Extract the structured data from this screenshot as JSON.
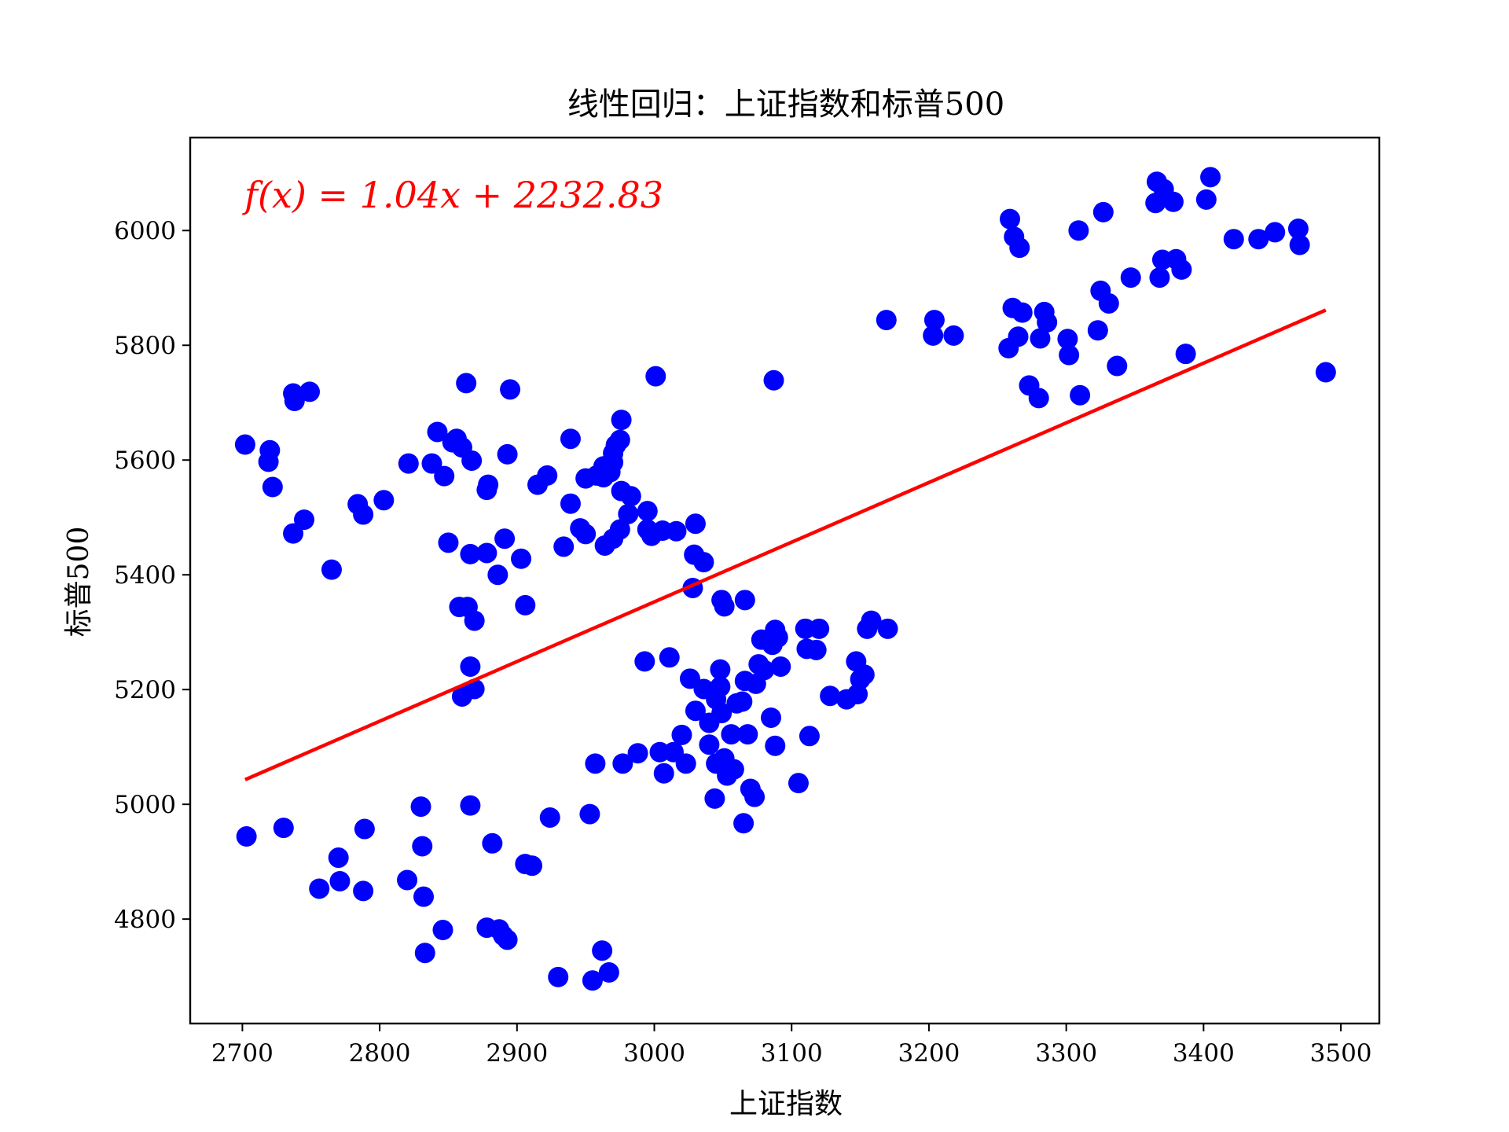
{
  "chart_data": {
    "type": "scatter",
    "title": "线性回归：上证指数和标普500",
    "xlabel": "上证指数",
    "ylabel": "标普500",
    "xlim": [
      2662,
      3528
    ],
    "ylim": [
      4618,
      6162
    ],
    "x_ticks": [
      2700,
      2800,
      2900,
      3000,
      3100,
      3200,
      3300,
      3400,
      3500
    ],
    "y_ticks": [
      4800,
      5000,
      5200,
      5400,
      5600,
      5800,
      6000
    ],
    "x_tick_labels": [
      "2700",
      "2800",
      "2900",
      "3000",
      "3100",
      "3200",
      "3300",
      "3400",
      "3500"
    ],
    "y_tick_labels": [
      "4800",
      "5000",
      "5200",
      "5400",
      "5600",
      "5800",
      "6000"
    ],
    "grid": false,
    "point_color": "#0000ff",
    "line_color": "#ff0000",
    "fit_label": "f(x) = 1.04x + 2232.83",
    "fit": {
      "slope": 1.04,
      "intercept": 2232.83,
      "x_range": [
        2702,
        3489
      ]
    },
    "points": [
      [
        2702,
        5627
      ],
      [
        2720,
        5617
      ],
      [
        2719,
        5597
      ],
      [
        2722,
        5553
      ],
      [
        2737,
        5716
      ],
      [
        2738,
        5703
      ],
      [
        2749,
        5719
      ],
      [
        2737,
        5472
      ],
      [
        2745,
        5496
      ],
      [
        2765,
        5409
      ],
      [
        2784,
        5523
      ],
      [
        2788,
        5505
      ],
      [
        2803,
        5530
      ],
      [
        2821,
        5594
      ],
      [
        2838,
        5594
      ],
      [
        2842,
        5649
      ],
      [
        2847,
        5572
      ],
      [
        2853,
        5631
      ],
      [
        2856,
        5637
      ],
      [
        2860,
        5622
      ],
      [
        2867,
        5599
      ],
      [
        2863,
        5734
      ],
      [
        2878,
        5548
      ],
      [
        2879,
        5557
      ],
      [
        2893,
        5610
      ],
      [
        2895,
        5723
      ],
      [
        2850,
        5456
      ],
      [
        2866,
        5436
      ],
      [
        2878,
        5438
      ],
      [
        2886,
        5400
      ],
      [
        2891,
        5463
      ],
      [
        2903,
        5428
      ],
      [
        2858,
        5344
      ],
      [
        2864,
        5344
      ],
      [
        2869,
        5320
      ],
      [
        2906,
        5347
      ],
      [
        2915,
        5557
      ],
      [
        2922,
        5573
      ],
      [
        2939,
        5637
      ],
      [
        2934,
        5449
      ],
      [
        2939,
        5524
      ],
      [
        2946,
        5481
      ],
      [
        2950,
        5471
      ],
      [
        2950,
        5568
      ],
      [
        2958,
        5573
      ],
      [
        2963,
        5589
      ],
      [
        2963,
        5570
      ],
      [
        2968,
        5579
      ],
      [
        2970,
        5596
      ],
      [
        2970,
        5612
      ],
      [
        2972,
        5626
      ],
      [
        2975,
        5635
      ],
      [
        2976,
        5670
      ],
      [
        2976,
        5546
      ],
      [
        2983,
        5537
      ],
      [
        2981,
        5506
      ],
      [
        2995,
        5511
      ],
      [
        2995,
        5479
      ],
      [
        2998,
        5468
      ],
      [
        3006,
        5477
      ],
      [
        3016,
        5476
      ],
      [
        3030,
        5489
      ],
      [
        2964,
        5451
      ],
      [
        2970,
        5463
      ],
      [
        2975,
        5479
      ],
      [
        3001,
        5746
      ],
      [
        3029,
        5435
      ],
      [
        3036,
        5422
      ],
      [
        3028,
        5377
      ],
      [
        3049,
        5356
      ],
      [
        3051,
        5345
      ],
      [
        3066,
        5356
      ],
      [
        3087,
        5739
      ],
      [
        2866,
        5240
      ],
      [
        2869,
        5201
      ],
      [
        2860,
        5188
      ],
      [
        2993,
        5249
      ],
      [
        3011,
        5256
      ],
      [
        2957,
        5071
      ],
      [
        2977,
        5071
      ],
      [
        2988,
        5089
      ],
      [
        3004,
        5091
      ],
      [
        3007,
        5054
      ],
      [
        3014,
        5091
      ],
      [
        3020,
        5121
      ],
      [
        3023,
        5071
      ],
      [
        3026,
        5219
      ],
      [
        3030,
        5163
      ],
      [
        3036,
        5201
      ],
      [
        3040,
        5142
      ],
      [
        3040,
        5104
      ],
      [
        3045,
        5183
      ],
      [
        3045,
        5071
      ],
      [
        3048,
        5235
      ],
      [
        3048,
        5205
      ],
      [
        3049,
        5159
      ],
      [
        3051,
        5080
      ],
      [
        3053,
        5050
      ],
      [
        3056,
        5122
      ],
      [
        3058,
        5061
      ],
      [
        3060,
        5176
      ],
      [
        3064,
        5179
      ],
      [
        3066,
        5215
      ],
      [
        3068,
        5122
      ],
      [
        3070,
        5027
      ],
      [
        3073,
        5013
      ],
      [
        3074,
        5210
      ],
      [
        3076,
        5244
      ],
      [
        3078,
        5287
      ],
      [
        3080,
        5234
      ],
      [
        3085,
        5151
      ],
      [
        3086,
        5278
      ],
      [
        3088,
        5304
      ],
      [
        3088,
        5102
      ],
      [
        3090,
        5291
      ],
      [
        3092,
        5240
      ],
      [
        3044,
        5010
      ],
      [
        3065,
        4967
      ],
      [
        3105,
        5037
      ],
      [
        3110,
        5306
      ],
      [
        3111,
        5271
      ],
      [
        3113,
        5119
      ],
      [
        3118,
        5269
      ],
      [
        3120,
        5306
      ],
      [
        3128,
        5189
      ],
      [
        3140,
        5183
      ],
      [
        3147,
        5249
      ],
      [
        3148,
        5192
      ],
      [
        3150,
        5218
      ],
      [
        3153,
        5226
      ],
      [
        3155,
        5306
      ],
      [
        3158,
        5320
      ],
      [
        3170,
        5306
      ],
      [
        2703,
        4944
      ],
      [
        2730,
        4959
      ],
      [
        2756,
        4853
      ],
      [
        2770,
        4907
      ],
      [
        2771,
        4866
      ],
      [
        2788,
        4849
      ],
      [
        2789,
        4957
      ],
      [
        2820,
        4868
      ],
      [
        2830,
        4996
      ],
      [
        2831,
        4927
      ],
      [
        2832,
        4839
      ],
      [
        2833,
        4741
      ],
      [
        2846,
        4781
      ],
      [
        2866,
        4998
      ],
      [
        2878,
        4785
      ],
      [
        2882,
        4932
      ],
      [
        2887,
        4782
      ],
      [
        2890,
        4771
      ],
      [
        2893,
        4764
      ],
      [
        2906,
        4896
      ],
      [
        2911,
        4893
      ],
      [
        2924,
        4977
      ],
      [
        2930,
        4699
      ],
      [
        2953,
        4983
      ],
      [
        2955,
        4693
      ],
      [
        2962,
        4745
      ],
      [
        2967,
        4707
      ],
      [
        3169,
        5844
      ],
      [
        3203,
        5817
      ],
      [
        3204,
        5844
      ],
      [
        3218,
        5817
      ],
      [
        3259,
        6020
      ],
      [
        3262,
        5989
      ],
      [
        3266,
        5970
      ],
      [
        3258,
        5795
      ],
      [
        3261,
        5865
      ],
      [
        3265,
        5815
      ],
      [
        3268,
        5857
      ],
      [
        3273,
        5730
      ],
      [
        3280,
        5708
      ],
      [
        3281,
        5812
      ],
      [
        3284,
        5858
      ],
      [
        3286,
        5840
      ],
      [
        3301,
        5811
      ],
      [
        3302,
        5783
      ],
      [
        3309,
        6000
      ],
      [
        3310,
        5713
      ],
      [
        3323,
        5826
      ],
      [
        3325,
        5895
      ],
      [
        3327,
        6032
      ],
      [
        3331,
        5873
      ],
      [
        3337,
        5764
      ],
      [
        3347,
        5918
      ],
      [
        3365,
        6048
      ],
      [
        3366,
        6085
      ],
      [
        3368,
        5918
      ],
      [
        3370,
        5949
      ],
      [
        3371,
        6072
      ],
      [
        3378,
        6050
      ],
      [
        3380,
        5950
      ],
      [
        3384,
        5932
      ],
      [
        3387,
        5785
      ],
      [
        3402,
        6054
      ],
      [
        3405,
        6093
      ],
      [
        3422,
        5985
      ],
      [
        3440,
        5985
      ],
      [
        3452,
        5997
      ],
      [
        3469,
        6003
      ],
      [
        3470,
        5975
      ],
      [
        3489,
        5753
      ]
    ]
  }
}
